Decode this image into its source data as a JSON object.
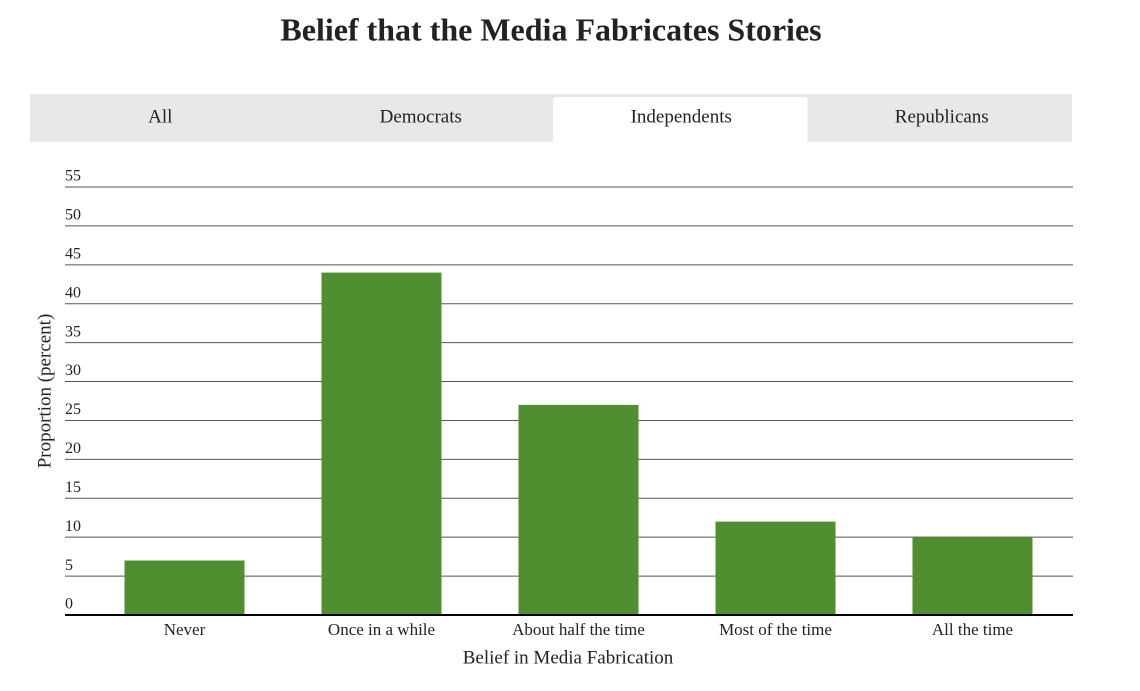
{
  "tabs": [
    {
      "label": "All"
    },
    {
      "label": "Democrats"
    },
    {
      "label": "Independents",
      "active": true
    },
    {
      "label": "Republicans"
    }
  ],
  "chart_data": {
    "type": "bar",
    "title": "Belief that the Media Fabricates Stories",
    "x_label": "Belief in Media Fabrication",
    "y_label": "Proportion (percent)",
    "categories": [
      "Never",
      "Once in a while",
      "About half the time",
      "Most of the time",
      "All the time"
    ],
    "values": [
      7,
      44,
      27,
      12,
      10
    ],
    "color": "#4f8f2f",
    "ylim": [
      0,
      55
    ],
    "yticks": [
      0,
      5,
      10,
      15,
      20,
      25,
      30,
      35,
      40,
      45,
      50,
      55
    ],
    "grid": true
  }
}
